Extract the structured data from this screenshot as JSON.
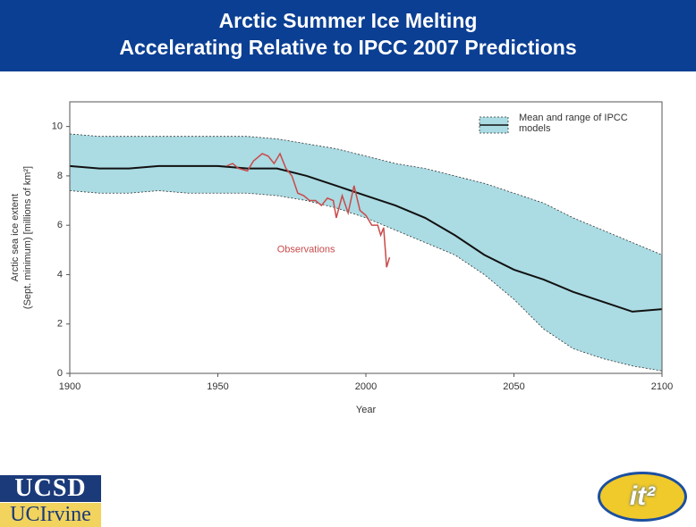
{
  "chart_data": {
    "type": "line",
    "title": [
      "Arctic Summer Ice Melting",
      "Accelerating Relative to IPCC 2007 Predictions"
    ],
    "xlabel": "Year",
    "ylabel": [
      "Arctic sea ice extent",
      "(Sept. minimum) [millions of km²]"
    ],
    "xlim": [
      1900,
      2100
    ],
    "xticks": [
      1900,
      1950,
      2000,
      2050,
      2100
    ],
    "ylim": [
      0,
      11
    ],
    "yticks": [
      0,
      2,
      4,
      6,
      8,
      10
    ],
    "grid": false,
    "legend": "upper right",
    "series": [
      {
        "name": "Mean and range of IPCC models",
        "color": "#111111",
        "band_color": "#abdbe3",
        "x": [
          1900,
          1910,
          1920,
          1930,
          1940,
          1950,
          1960,
          1970,
          1980,
          1990,
          2000,
          2010,
          2020,
          2030,
          2040,
          2050,
          2060,
          2070,
          2080,
          2090,
          2100
        ],
        "values": [
          8.4,
          8.3,
          8.3,
          8.4,
          8.4,
          8.4,
          8.3,
          8.3,
          8.0,
          7.6,
          7.2,
          6.8,
          6.3,
          5.6,
          4.8,
          4.2,
          3.8,
          3.3,
          2.9,
          2.5,
          2.6
        ],
        "upper": [
          9.7,
          9.6,
          9.6,
          9.6,
          9.6,
          9.6,
          9.6,
          9.5,
          9.3,
          9.1,
          8.8,
          8.5,
          8.3,
          8.0,
          7.7,
          7.3,
          6.9,
          6.3,
          5.8,
          5.3,
          4.8
        ],
        "lower": [
          7.4,
          7.3,
          7.3,
          7.4,
          7.3,
          7.3,
          7.3,
          7.2,
          7.0,
          6.7,
          6.3,
          5.8,
          5.3,
          4.8,
          4.0,
          3.0,
          1.8,
          1.0,
          0.6,
          0.3,
          0.1
        ]
      },
      {
        "name": "Observations",
        "color": "#c94a4a",
        "x": [
          1953,
          1955,
          1957,
          1960,
          1962,
          1965,
          1967,
          1969,
          1971,
          1973,
          1975,
          1977,
          1979,
          1981,
          1983,
          1985,
          1987,
          1989,
          1990,
          1992,
          1994,
          1996,
          1998,
          2000,
          2002,
          2004,
          2005,
          2006,
          2007,
          2008
        ],
        "values": [
          8.4,
          8.5,
          8.3,
          8.2,
          8.6,
          8.9,
          8.8,
          8.5,
          8.9,
          8.3,
          8.0,
          7.3,
          7.2,
          7.0,
          7.0,
          6.8,
          7.1,
          7.0,
          6.3,
          7.2,
          6.5,
          7.6,
          6.6,
          6.4,
          6.0,
          6.0,
          5.6,
          5.9,
          4.3,
          4.7
        ]
      }
    ]
  },
  "logos": {
    "left_top": "UCSD",
    "left_bottom": "UCIrvine",
    "right": "it²"
  }
}
